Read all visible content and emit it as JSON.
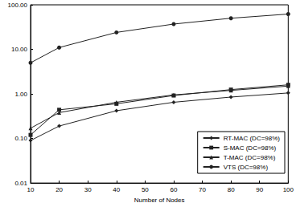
{
  "chart_data": {
    "type": "line",
    "xlabel": "Number of Nodes",
    "x": [
      10,
      20,
      40,
      60,
      80,
      100
    ],
    "series": [
      {
        "name": "RT-MAC (DC=98%)",
        "color": "#222222",
        "marker": "diamond",
        "values": [
          0.09,
          0.19,
          0.42,
          0.65,
          0.85,
          1.05
        ]
      },
      {
        "name": "S-MAC (DC=98%)",
        "color": "#222222",
        "marker": "square",
        "values": [
          0.12,
          0.44,
          0.6,
          0.92,
          1.25,
          1.6
        ]
      },
      {
        "name": "T-MAC (DC=98%)",
        "color": "#222222",
        "marker": "triangle",
        "values": [
          0.17,
          0.38,
          0.65,
          0.95,
          1.2,
          1.5
        ]
      },
      {
        "name": "VTS (DC=98%)",
        "color": "#222222",
        "marker": "circle",
        "values": [
          5,
          11,
          24,
          37,
          50,
          62
        ]
      }
    ],
    "xlim": [
      10,
      100
    ],
    "xticks": [
      10,
      20,
      30,
      40,
      50,
      60,
      70,
      80,
      90,
      100
    ],
    "ylim": [
      0.01,
      100
    ],
    "yticks": [
      {
        "value": 0.01,
        "label": "0.01"
      },
      {
        "value": 0.1,
        "label": "0.10"
      },
      {
        "value": 1,
        "label": "1.00"
      },
      {
        "value": 10,
        "label": "10.00"
      },
      {
        "value": 100,
        "label": "100.00"
      }
    ],
    "log": "y",
    "grid": false,
    "legend": "lower right"
  }
}
